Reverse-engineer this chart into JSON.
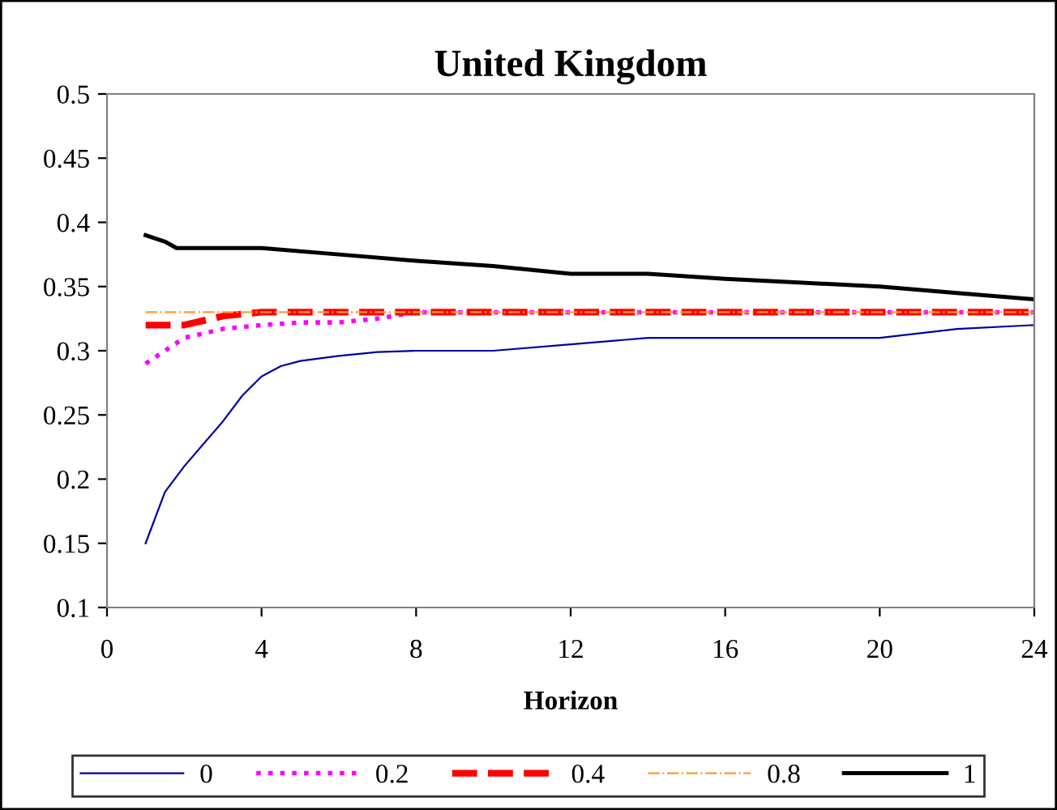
{
  "chart_data": {
    "type": "line",
    "title": "United Kingdom",
    "xlabel": "Horizon",
    "xlim": [
      0,
      24
    ],
    "xticks": [
      0,
      4,
      8,
      12,
      16,
      20,
      24
    ],
    "ylim": [
      0.1,
      0.5
    ],
    "yticks": [
      0.1,
      0.15,
      0.2,
      0.25,
      0.3,
      0.35,
      0.4,
      0.45,
      0.5
    ],
    "grid": false,
    "legend": "bottom",
    "marker": "none",
    "series": [
      {
        "name": "0",
        "color": "#0000a0",
        "line_style": "solid",
        "x": [
          1,
          1.5,
          2,
          3,
          3.5,
          4,
          4.5,
          5,
          6,
          7,
          8,
          10,
          12,
          14,
          20,
          22,
          24
        ],
        "values": [
          0.15,
          0.19,
          0.21,
          0.245,
          0.265,
          0.28,
          0.288,
          0.292,
          0.296,
          0.299,
          0.3,
          0.3,
          0.305,
          0.31,
          0.31,
          0.317,
          0.32
        ]
      },
      {
        "name": "0.2",
        "color": "#ff00ff",
        "line_style": "dotted",
        "x": [
          1,
          1.5,
          2,
          3,
          4,
          5,
          6,
          7,
          8,
          24
        ],
        "values": [
          0.29,
          0.3,
          0.31,
          0.317,
          0.32,
          0.322,
          0.322,
          0.325,
          0.33,
          0.33
        ]
      },
      {
        "name": "0.4",
        "color": "#ff0000",
        "line_style": "dashed",
        "x": [
          1,
          2,
          3,
          4,
          24
        ],
        "values": [
          0.32,
          0.32,
          0.327,
          0.33,
          0.33
        ]
      },
      {
        "name": "0.8",
        "color": "#ff9933",
        "line_style": "dashed",
        "x": [
          1,
          24
        ],
        "values": [
          0.33,
          0.33
        ]
      },
      {
        "name": "1",
        "color": "#000000",
        "line_style": "solid",
        "x": [
          1,
          1.5,
          1.8,
          2,
          4,
          6,
          8,
          10,
          12,
          14,
          16,
          18,
          20,
          22,
          24
        ],
        "values": [
          0.39,
          0.385,
          0.38,
          0.38,
          0.38,
          0.375,
          0.37,
          0.366,
          0.36,
          0.36,
          0.356,
          0.353,
          0.35,
          0.345,
          0.34
        ]
      }
    ]
  }
}
